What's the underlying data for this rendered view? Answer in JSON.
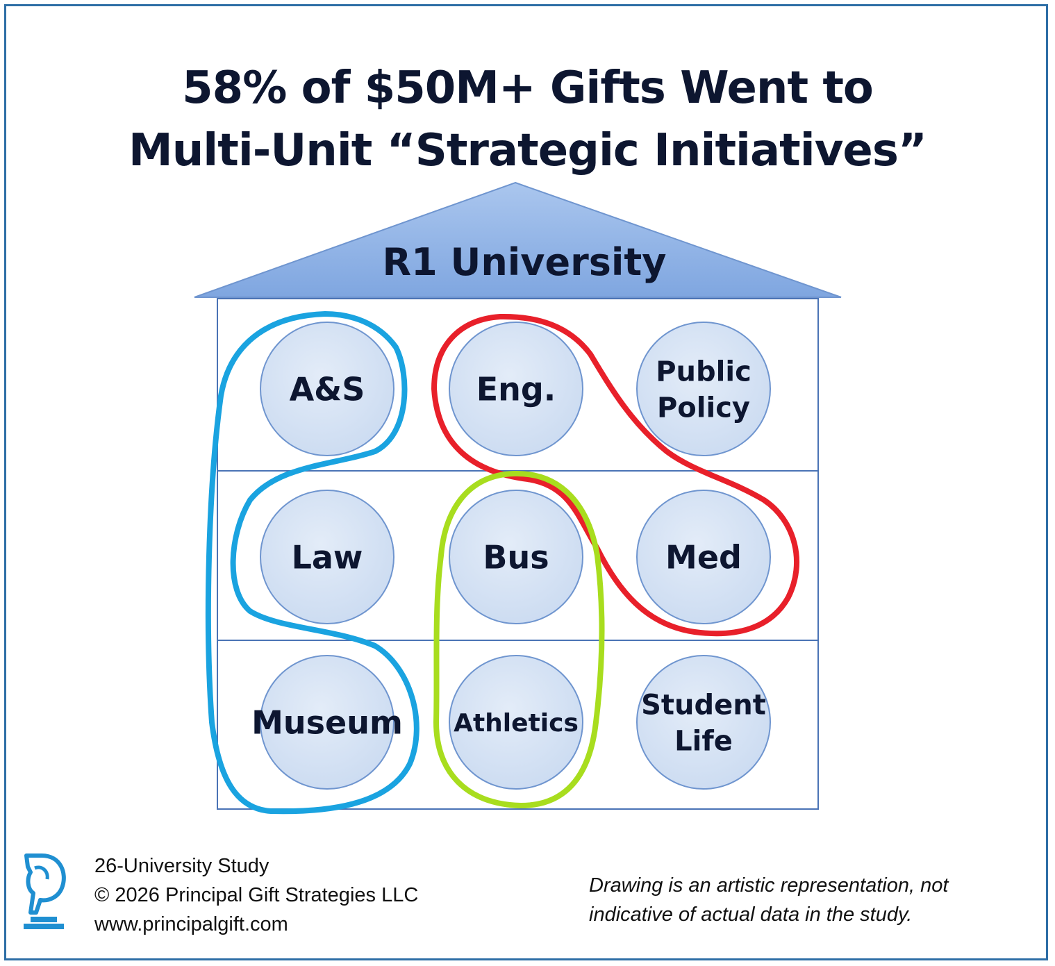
{
  "title": {
    "line1": "58% of $50M+ Gifts Went to",
    "line2": "Multi-Unit “Strategic Initiatives”"
  },
  "building": {
    "roof_label": "R1 University"
  },
  "units": [
    {
      "id": "as",
      "lines": [
        "A&S"
      ]
    },
    {
      "id": "eng",
      "lines": [
        "Eng."
      ]
    },
    {
      "id": "public-policy",
      "lines": [
        "Public",
        "Policy"
      ]
    },
    {
      "id": "law",
      "lines": [
        "Law"
      ]
    },
    {
      "id": "bus",
      "lines": [
        "Bus"
      ]
    },
    {
      "id": "med",
      "lines": [
        "Med"
      ]
    },
    {
      "id": "museum",
      "lines": [
        "Museum"
      ]
    },
    {
      "id": "athletics",
      "lines": [
        "Athletics"
      ]
    },
    {
      "id": "student-life",
      "lines": [
        "Student",
        "Life"
      ]
    }
  ],
  "groupings": [
    {
      "id": "blue-group",
      "color": "#1aa3e0",
      "units": [
        "A&S",
        "Law",
        "Museum"
      ]
    },
    {
      "id": "red-group",
      "color": "#e8202a",
      "units": [
        "Eng.",
        "Public Policy",
        "Med"
      ]
    },
    {
      "id": "green-group",
      "color": "#a8dd1e",
      "units": [
        "Bus",
        "Athletics"
      ]
    }
  ],
  "footer": {
    "line1": "26-University Study",
    "line2": "© 2026 Principal Gift Strategies LLC",
    "line3": "www.principalgift.com",
    "disclaimer_line1": "Drawing is an artistic representation, not",
    "disclaimer_line2": "indicative of actual data in the study."
  },
  "colors": {
    "border": "#2e6ea6",
    "roof_fill": "#8fb3e6",
    "circle_fill": "#d6e3f5",
    "circle_stroke": "#6f95cf",
    "title_text": "#0d1630",
    "logo": "#1f8fd1"
  },
  "logo_icon": "horse-head-p-logo-icon"
}
